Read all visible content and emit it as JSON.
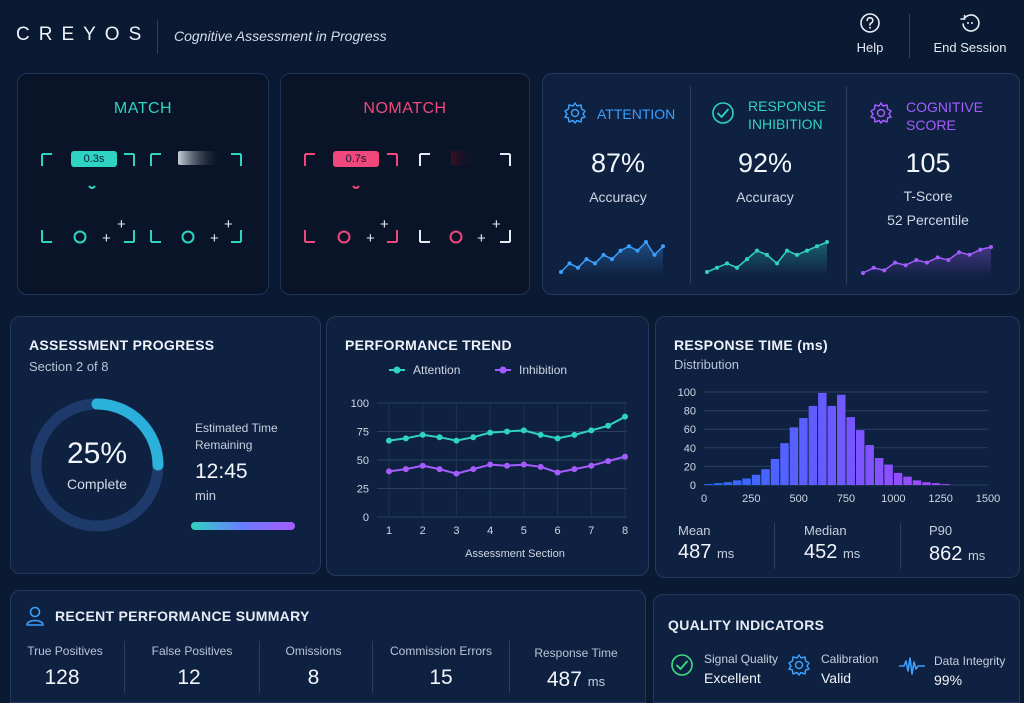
{
  "header": {
    "brand": "CREYOS",
    "title": "Cognitive Assessment in Progress",
    "help_label": "Help",
    "end_session_label": "End Session"
  },
  "stimuli": {
    "match": {
      "title": "MATCH",
      "badge": "0.3s",
      "color": "#2fd3c2"
    },
    "nomatch": {
      "title": "NOMATCH",
      "badge": "0.7s",
      "color": "#f0487a"
    }
  },
  "stats": {
    "attention": {
      "label": "ATTENTION",
      "value": "87%",
      "sub": "Accuracy",
      "color": "#3aa0ff",
      "spark": [
        3,
        5,
        4,
        6,
        5,
        7,
        6,
        8,
        9,
        8,
        10,
        7,
        9
      ]
    },
    "inhibition": {
      "label_1": "RESPONSE",
      "label_2": "INHIBITION",
      "value": "92%",
      "sub": "Accuracy",
      "color": "#2fd3c2",
      "spark": [
        3,
        4,
        5,
        4,
        6,
        8,
        7,
        5,
        8,
        7,
        8,
        9,
        10
      ]
    },
    "cognitive": {
      "label_1": "COGNITIVE",
      "label_2": "SCORE",
      "value": "105",
      "sub": "T-Score",
      "sub2": "52 Percentile",
      "color": "#a45cff",
      "spark": [
        3,
        4,
        3.5,
        5,
        4.5,
        5.5,
        5,
        6,
        5.5,
        7,
        6.5,
        7.5,
        8
      ]
    }
  },
  "progress": {
    "title": "ASSESSMENT PROGRESS",
    "section": "Section 2 of 8",
    "percent_label": "25%",
    "complete_label": "Complete",
    "percent": 25,
    "eta_label_1": "Estimated Time",
    "eta_label_2": "Remaining",
    "eta_value": "12:45",
    "eta_unit": "min"
  },
  "trend": {
    "title": "PERFORMANCE TREND",
    "xlabel": "Assessment Section",
    "chart_data": {
      "type": "line",
      "x": [
        1,
        1.5,
        2,
        2.5,
        3,
        3.5,
        4,
        4.5,
        5,
        5.5,
        6,
        6.5,
        7,
        7.5,
        8
      ],
      "series": [
        {
          "name": "Attention",
          "color": "#2fd3c2",
          "values": [
            67,
            69,
            72,
            70,
            67,
            70,
            74,
            75,
            76,
            72,
            69,
            72,
            76,
            80,
            88
          ]
        },
        {
          "name": "Inhibition",
          "color": "#a45cff",
          "values": [
            40,
            42,
            45,
            42,
            38,
            42,
            46,
            45,
            46,
            44,
            39,
            42,
            45,
            49,
            53
          ]
        }
      ],
      "ylim": [
        0,
        100
      ],
      "yticks": [
        0,
        25,
        50,
        75,
        100
      ],
      "xticks": [
        1,
        2,
        3,
        4,
        5,
        6,
        7,
        8
      ],
      "legend": "top"
    }
  },
  "response_time": {
    "title": "RESPONSE TIME (ms)",
    "subtitle": "Distribution",
    "chart_data": {
      "type": "bar",
      "bin_start": 0,
      "bin_width": 50,
      "values": [
        1,
        2,
        3,
        5,
        7,
        11,
        17,
        28,
        45,
        62,
        72,
        85,
        99,
        85,
        97,
        73,
        59,
        43,
        29,
        22,
        13,
        9,
        5,
        3,
        2,
        1
      ],
      "xlim": [
        0,
        1500
      ],
      "ylim": [
        0,
        100
      ],
      "xticks": [
        0,
        250,
        500,
        750,
        1000,
        1250,
        1500
      ],
      "yticks": [
        0,
        20,
        40,
        60,
        80,
        100
      ]
    },
    "stats": [
      {
        "label": "Mean",
        "value": "487",
        "unit": "ms"
      },
      {
        "label": "Median",
        "value": "452",
        "unit": "ms"
      },
      {
        "label": "P90",
        "value": "862",
        "unit": "ms"
      }
    ]
  },
  "summary": {
    "title": "RECENT PERFORMANCE SUMMARY",
    "items": [
      {
        "label": "True Positives",
        "value": "128",
        "unit": ""
      },
      {
        "label": "False Positives",
        "value": "12",
        "unit": ""
      },
      {
        "label": "Omissions",
        "value": "8",
        "unit": ""
      },
      {
        "label": "Commission Errors",
        "value": "15",
        "unit": ""
      },
      {
        "label": "Response Time",
        "value": "487",
        "unit": "ms"
      }
    ]
  },
  "quality": {
    "title": "QUALITY INDICATORS",
    "items": [
      {
        "label": "Signal Quality",
        "value": "Excellent",
        "icon": "check-circle-icon",
        "color": "#3ddc84"
      },
      {
        "label": "Calibration",
        "value": "Valid",
        "icon": "gear-icon",
        "color": "#3aa0ff"
      },
      {
        "label": "Data Integrity",
        "value": "99%",
        "icon": "waveform-icon",
        "color": "#3aa0ff"
      }
    ]
  }
}
